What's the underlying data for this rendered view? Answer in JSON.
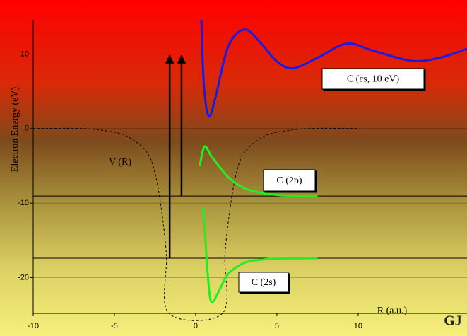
{
  "chart_data": {
    "type": "line",
    "ylabel": "Electron Energy (eV)",
    "xlabel": "R (a.u.)",
    "logo": "GJ",
    "xlim": [
      -10,
      16.7
    ],
    "ylim": [
      -24.8,
      14.6
    ],
    "xticks": [
      -10,
      -5,
      0,
      5,
      10
    ],
    "yticks": [
      10,
      0,
      -10,
      -20
    ],
    "grid": true,
    "levels": [
      -9.05,
      -17.4
    ],
    "arrows": [
      {
        "x": -1.6,
        "y": [
          -17.4,
          9.8
        ]
      },
      {
        "x": -0.87,
        "y": [
          -9.05,
          9.8
        ]
      }
    ],
    "series": [
      {
        "label": "V (R)",
        "color": "#000000",
        "dashed": true,
        "x": [
          -10,
          -7,
          -5,
          -4,
          -3,
          -2.5,
          -2.1,
          -1.8,
          -1.65,
          1.65,
          1.8,
          2.1,
          2.5,
          3,
          4,
          5,
          7,
          10
        ],
        "values": [
          0,
          0,
          -0.5,
          -1.3,
          -3.2,
          -6,
          -11,
          -17,
          -24.8,
          -24.8,
          -17,
          -11,
          -6,
          -3.2,
          -1.3,
          -0.5,
          0,
          0
        ]
      },
      {
        "label": "C (εs, 10 eV)",
        "color": "#1a1ae6",
        "dashed": false,
        "x": [
          0.35,
          0.5,
          0.8,
          1.2,
          2,
          3,
          4,
          5,
          6,
          7.5,
          9.3,
          11,
          13.3,
          15,
          16.7
        ],
        "values": [
          14.6,
          6,
          1.7,
          4,
          11,
          13.3,
          11.5,
          9,
          8.1,
          9.5,
          11.4,
          10.4,
          9.1,
          9.5,
          10.7
        ]
      },
      {
        "label": "C (2p)",
        "color": "#22ee22",
        "dashed": false,
        "x": [
          0.25,
          0.55,
          1,
          2,
          3,
          4,
          5,
          6,
          7.5
        ],
        "values": [
          -5,
          -2.4,
          -3.8,
          -6.5,
          -8,
          -8.6,
          -8.9,
          -9,
          -9.05
        ]
      },
      {
        "label": "C (2s)",
        "color": "#22ee22",
        "dashed": false,
        "x": [
          0.45,
          0.6,
          0.8,
          1.0,
          1.5,
          2,
          3,
          4,
          5,
          7.5
        ],
        "values": [
          -10.5,
          -15,
          -21,
          -23.3,
          -21.5,
          -19.5,
          -18,
          -17.6,
          -17.45,
          -17.4
        ]
      }
    ]
  }
}
